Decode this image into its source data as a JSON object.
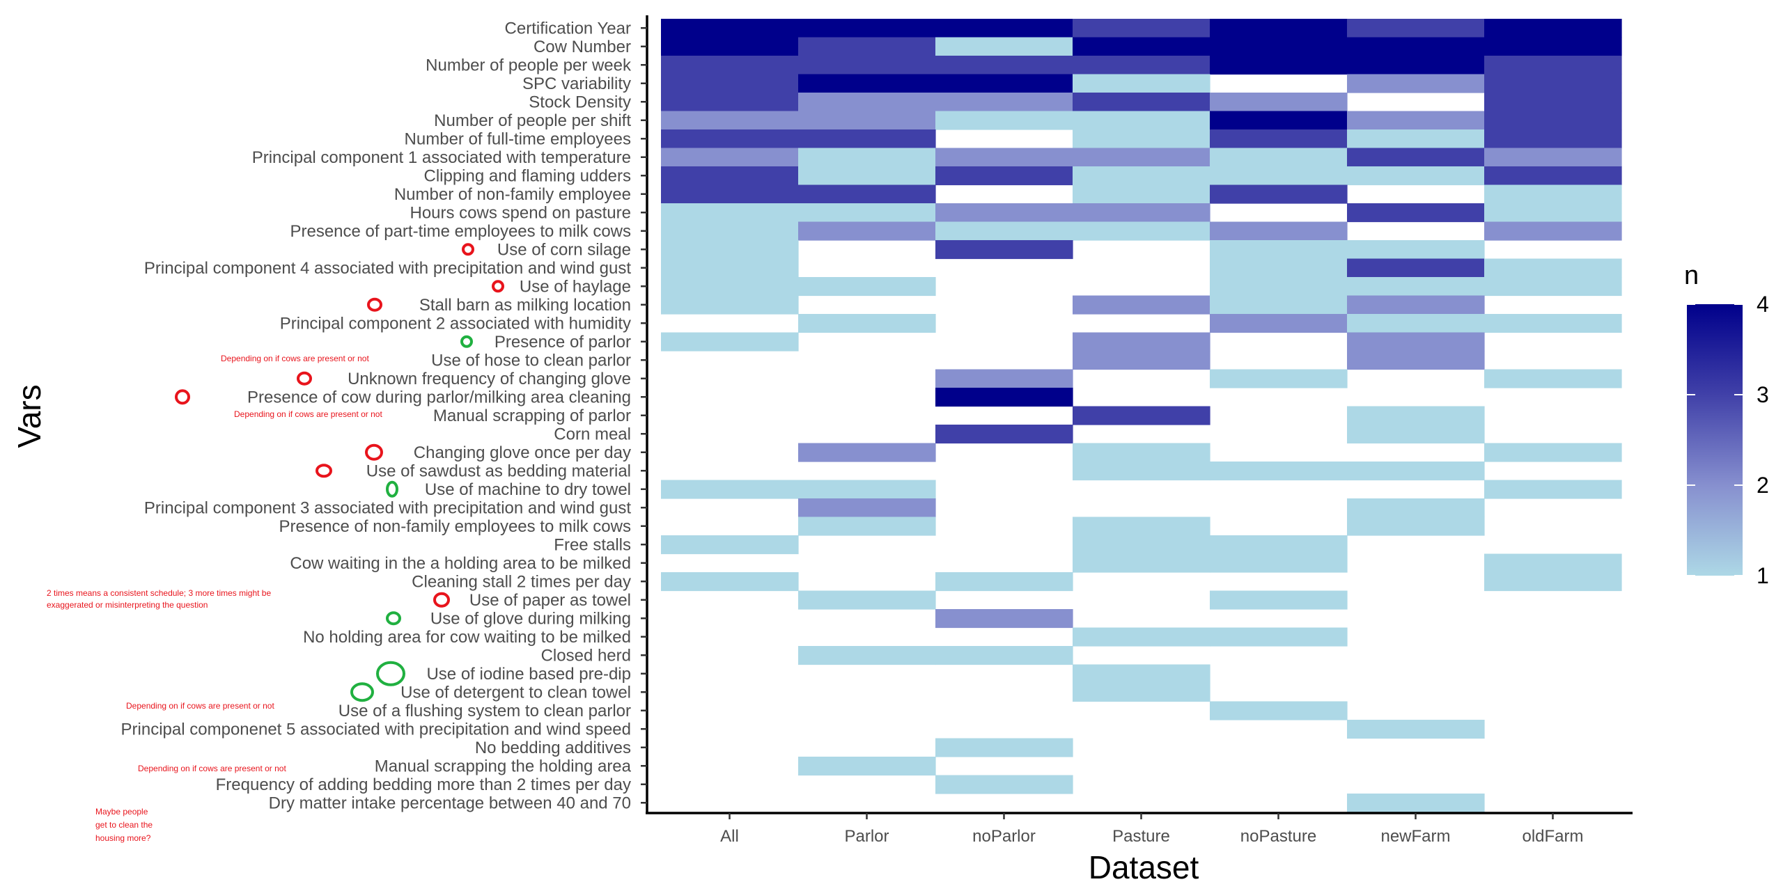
{
  "chart_data": {
    "type": "heatmap",
    "xlabel": "Dataset",
    "ylabel": "Vars",
    "x_categories": [
      "All",
      "Parlor",
      "noParlor",
      "Pasture",
      "noPasture",
      "newFarm",
      "oldFarm"
    ],
    "y_categories": [
      "Certification Year",
      "Cow Number",
      "Number of people per week",
      "SPC variability",
      "Stock Density",
      "Number of people per shift",
      "Number of full-time employees",
      "Principal component 1 associated with temperature",
      "Clipping and flaming udders",
      "Number of non-family employee",
      "Hours cows spend on pasture",
      "Presence of part-time employees to milk cows",
      "Use of corn silage",
      "Principal component 4 associated with precipitation and wind gust",
      "Use of haylage",
      "Stall barn as milking location",
      "Principal component 2 associated with humidity",
      "Presence of parlor",
      "Use of hose to clean parlor",
      "Unknown frequency of changing glove",
      "Presence of cow during parlor/milking area cleaning",
      "Manual scrapping of parlor",
      "Corn meal",
      "Changing glove once per day",
      "Use of sawdust as bedding material",
      "Use of machine to dry towel",
      "Principal component 3 associated with precipitation and wind gust",
      "Presence of non-family employees to milk cows",
      "Free stalls",
      "Cow waiting in the a holding area to be milked",
      "Cleaning stall 2 times per day",
      "Use of paper as towel",
      "Use of glove during milking",
      "No holding area for cow waiting to be milked",
      "Closed herd",
      "Use of iodine based pre-dip",
      "Use of detergent to clean towel",
      "Use of a flushing system to clean parlor",
      "Principal componenet 5 associated with precipitation and wind speed",
      "No bedding additives",
      "Manual scrapping the holding area",
      "Frequency of adding bedding more than 2 times per day",
      "Dry matter intake percentage between 40 and 70"
    ],
    "values": [
      [
        4,
        4,
        4,
        3,
        4,
        3,
        4
      ],
      [
        4,
        3,
        1,
        4,
        4,
        4,
        4
      ],
      [
        3,
        3,
        3,
        3,
        4,
        4,
        3
      ],
      [
        3,
        4,
        4,
        1,
        0,
        2,
        3
      ],
      [
        3,
        2,
        2,
        3,
        2,
        0,
        3
      ],
      [
        2,
        2,
        1,
        1,
        4,
        2,
        3
      ],
      [
        3,
        3,
        0,
        1,
        3,
        1,
        3
      ],
      [
        2,
        1,
        2,
        2,
        1,
        3,
        2
      ],
      [
        3,
        1,
        3,
        1,
        1,
        1,
        3
      ],
      [
        3,
        3,
        0,
        1,
        3,
        0,
        1
      ],
      [
        1,
        1,
        2,
        2,
        0,
        3,
        1
      ],
      [
        1,
        2,
        1,
        1,
        2,
        0,
        2
      ],
      [
        1,
        0,
        3,
        0,
        1,
        1,
        0
      ],
      [
        1,
        0,
        0,
        0,
        1,
        3,
        1
      ],
      [
        1,
        1,
        0,
        0,
        1,
        1,
        1
      ],
      [
        1,
        0,
        0,
        2,
        1,
        2,
        0
      ],
      [
        0,
        1,
        0,
        0,
        2,
        1,
        1
      ],
      [
        1,
        0,
        0,
        2,
        0,
        2,
        0
      ],
      [
        0,
        0,
        0,
        2,
        0,
        2,
        0
      ],
      [
        0,
        0,
        2,
        0,
        1,
        0,
        1
      ],
      [
        0,
        0,
        4,
        0,
        0,
        0,
        0
      ],
      [
        0,
        0,
        0,
        3,
        0,
        1,
        0
      ],
      [
        0,
        0,
        3,
        0,
        0,
        1,
        0
      ],
      [
        0,
        2,
        0,
        1,
        0,
        0,
        1
      ],
      [
        0,
        0,
        0,
        1,
        1,
        1,
        0
      ],
      [
        1,
        1,
        0,
        0,
        0,
        0,
        1
      ],
      [
        0,
        2,
        0,
        0,
        0,
        1,
        0
      ],
      [
        0,
        1,
        0,
        1,
        0,
        1,
        0
      ],
      [
        1,
        0,
        0,
        1,
        1,
        0,
        0
      ],
      [
        0,
        0,
        0,
        1,
        1,
        0,
        1
      ],
      [
        1,
        0,
        1,
        0,
        0,
        0,
        1
      ],
      [
        0,
        1,
        0,
        0,
        1,
        0,
        0
      ],
      [
        0,
        0,
        2,
        0,
        0,
        0,
        0
      ],
      [
        0,
        0,
        0,
        1,
        1,
        0,
        0
      ],
      [
        0,
        1,
        1,
        0,
        0,
        0,
        0
      ],
      [
        0,
        0,
        0,
        1,
        0,
        0,
        0
      ],
      [
        0,
        0,
        0,
        1,
        0,
        0,
        0
      ],
      [
        0,
        0,
        0,
        0,
        1,
        0,
        0
      ],
      [
        0,
        0,
        0,
        0,
        0,
        1,
        0
      ],
      [
        0,
        0,
        1,
        0,
        0,
        0,
        0
      ],
      [
        0,
        1,
        0,
        0,
        0,
        0,
        0
      ],
      [
        0,
        0,
        1,
        0,
        0,
        0,
        0
      ],
      [
        0,
        0,
        0,
        0,
        0,
        1,
        0
      ]
    ],
    "legend": {
      "title": "n",
      "ticks": [
        1,
        2,
        3,
        4
      ],
      "range": [
        1,
        4
      ],
      "placement": "right"
    },
    "colors": {
      "1": "#add8e6",
      "2": "#8790cf",
      "3": "#4040a8",
      "4": "#00008b"
    },
    "annotations": {
      "circles": [
        {
          "row": 12,
          "color": "#e8141c"
        },
        {
          "row": 14,
          "color": "#e8141c"
        },
        {
          "row": 15,
          "color": "#e8141c"
        },
        {
          "row": 17,
          "color": "#20b040"
        },
        {
          "row": 19,
          "color": "#e8141c"
        },
        {
          "row": 20,
          "color": "#e8141c"
        },
        {
          "row": 23,
          "color": "#e8141c"
        },
        {
          "row": 24,
          "color": "#e8141c"
        },
        {
          "row": 25,
          "color": "#20b040"
        },
        {
          "row": 31,
          "color": "#e8141c"
        },
        {
          "row": 32,
          "color": "#20b040"
        },
        {
          "row": 35,
          "color": "#20b040"
        },
        {
          "row": 36,
          "color": "#20b040"
        }
      ],
      "notes": [
        "Depending on if cows are present or not",
        "Depending on if cows are present or not",
        "2 times means a consistent schedule; 3 more times might be",
        "exaggerated or misinterpreting the question",
        "Depending on if cows are present or not",
        "Depending on if cows are present or not",
        "Maybe people",
        "get to clean the",
        "housing more?"
      ]
    }
  }
}
